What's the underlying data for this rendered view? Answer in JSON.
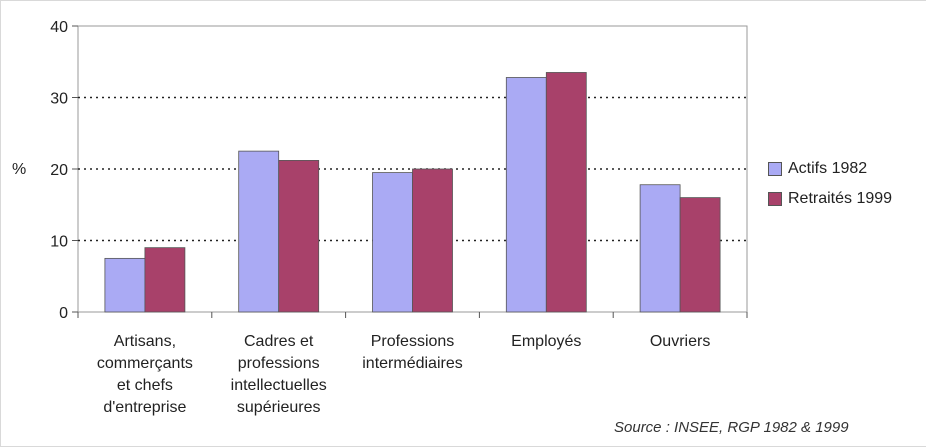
{
  "chart_data": {
    "type": "bar",
    "categories": [
      [
        "Artisans,",
        "commerçants",
        "et chefs",
        "d'entreprise"
      ],
      [
        "Cadres et",
        "professions",
        "intellectuelles",
        "supérieures"
      ],
      [
        "Professions",
        "intermédiaires"
      ],
      [
        "Employés"
      ],
      [
        "Ouvriers"
      ]
    ],
    "series": [
      {
        "name": "Actifs 1982",
        "values": [
          7.5,
          22.5,
          19.5,
          32.8,
          17.8
        ],
        "color": "#aaaaf4"
      },
      {
        "name": "Retraités 1999",
        "values": [
          9.0,
          21.2,
          20.0,
          33.5,
          16.0
        ],
        "color": "#a8416a"
      }
    ],
    "ylabel": "%",
    "ylim": [
      0,
      40
    ],
    "yticks": [
      0,
      10,
      20,
      30,
      40
    ],
    "grid": "dotted horizontal",
    "legend": "right",
    "source": "Source : INSEE, RGP 1982 & 1999"
  }
}
